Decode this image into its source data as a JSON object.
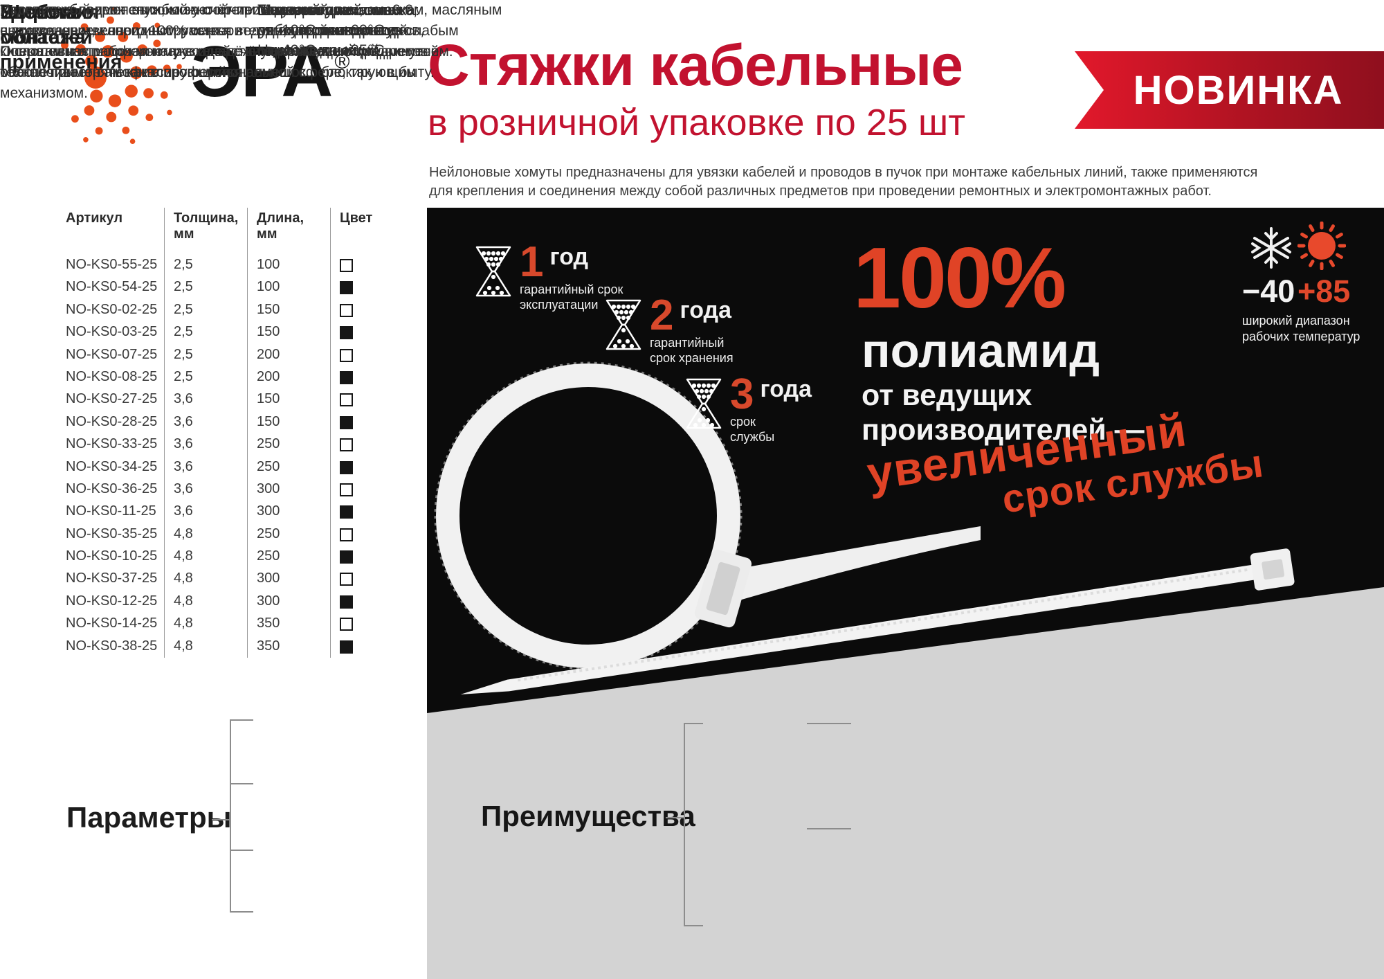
{
  "brand": {
    "name": "ЭРА",
    "registered": "®"
  },
  "header": {
    "title": "Стяжки кабельные",
    "subtitle": "в розничной упаковке по 25 шт",
    "badge": "НОВИНКА",
    "description": "Нейлоновые хомуты предназначены для увязки кабелей и проводов в пучок при монтаже кабельных линий, также применяются\nдля крепления и соединения между собой различных предметов при проведении ремонтных и электромонтажных работ."
  },
  "table": {
    "headers": [
      "Артикул",
      "Толщина,\nмм",
      "Длина,\nмм",
      "Цвет"
    ],
    "rows": [
      {
        "art": "NO-KS0-55-25",
        "thickness": "2,5",
        "length": "100",
        "color": "white"
      },
      {
        "art": "NO-KS0-54-25",
        "thickness": "2,5",
        "length": "100",
        "color": "black"
      },
      {
        "art": "NO-KS0-02-25",
        "thickness": "2,5",
        "length": "150",
        "color": "white"
      },
      {
        "art": "NO-KS0-03-25",
        "thickness": "2,5",
        "length": "150",
        "color": "black"
      },
      {
        "art": "NO-KS0-07-25",
        "thickness": "2,5",
        "length": "200",
        "color": "white"
      },
      {
        "art": "NO-KS0-08-25",
        "thickness": "2,5",
        "length": "200",
        "color": "black"
      },
      {
        "art": "NO-KS0-27-25",
        "thickness": "3,6",
        "length": "150",
        "color": "white"
      },
      {
        "art": "NO-KS0-28-25",
        "thickness": "3,6",
        "length": "150",
        "color": "black"
      },
      {
        "art": "NO-KS0-33-25",
        "thickness": "3,6",
        "length": "250",
        "color": "white"
      },
      {
        "art": "NO-KS0-34-25",
        "thickness": "3,6",
        "length": "250",
        "color": "black"
      },
      {
        "art": "NO-KS0-36-25",
        "thickness": "3,6",
        "length": "300",
        "color": "white"
      },
      {
        "art": "NO-KS0-11-25",
        "thickness": "3,6",
        "length": "300",
        "color": "black"
      },
      {
        "art": "NO-KS0-35-25",
        "thickness": "4,8",
        "length": "250",
        "color": "white"
      },
      {
        "art": "NO-KS0-10-25",
        "thickness": "4,8",
        "length": "250",
        "color": "black"
      },
      {
        "art": "NO-KS0-37-25",
        "thickness": "4,8",
        "length": "300",
        "color": "white"
      },
      {
        "art": "NO-KS0-12-25",
        "thickness": "4,8",
        "length": "300",
        "color": "black"
      },
      {
        "art": "NO-KS0-14-25",
        "thickness": "4,8",
        "length": "350",
        "color": "white"
      },
      {
        "art": "NO-KS0-38-25",
        "thickness": "4,8",
        "length": "350",
        "color": "black"
      }
    ]
  },
  "promo": {
    "years": [
      {
        "num": "1",
        "unit": "год",
        "desc": "гарантийный срок\nэксплуатации"
      },
      {
        "num": "2",
        "unit": "года",
        "desc": "гарантийный\nсрок хранения"
      },
      {
        "num": "3",
        "unit": "года",
        "desc": "срок\nслужбы"
      }
    ],
    "percent": "100%",
    "line1": "полиамид",
    "line2": "от ведущих",
    "line3": "производителей —",
    "accent1": "увеличенный",
    "accent2": "срок службы",
    "temp_cold": "−40",
    "temp_hot": "+85",
    "temp_caption": "широкий диапазон\nрабочих температур"
  },
  "parameters": {
    "title": "Параметры",
    "items": [
      "Замковый механизм\nодностороннего хода.\nНеразъемный",
      "Материал: нейлон 6.6,\nне содержит галогенов,\nсамозатухающий",
      "Широкий диапазон\nрабочих температур\nот -40°С до +85°С",
      "Температура монтажа:\nот -10°С до +60°С"
    ]
  },
  "advantages": {
    "title": "Преимущества",
    "items": [
      {
        "label": "Экономия",
        "text": "Увеличенный срок службы за счёт применяемого\nвысококачественного 100% сырья ведущих производителей.\nПовышенная рабочая нагрузка за счёт применения продвинутой\nтехнологии горячеканального литья."
      },
      {
        "label": "Удобство\nмонтажа",
        "text": "Простота в применении, можно крепить руками или\nс применением спец инструмента.\nОперативность при монтаже и надёжную фиксацию предметов\nобеспечивает самофиксирующийся ремешок с блокирующим\nмеханизмом."
      },
      {
        "label": "Широта\nобластей\nприменения",
        "text": "Изделия обладают высокой устойчивостью к маслам, смазкам, масляным\nпроизводным, хлоридным растворителям, устойчивостью к слабым\nкислотам и атмосферному воздействию, не желтеют со временем.\nМожно применять как в профессиональной сфере, так и в быту."
      }
    ]
  },
  "colors": {
    "title_red": "#c2122f",
    "promo_orange": "#e04326",
    "panel_black": "#0b0b0b",
    "panel_gray": "#d3d3d3"
  }
}
